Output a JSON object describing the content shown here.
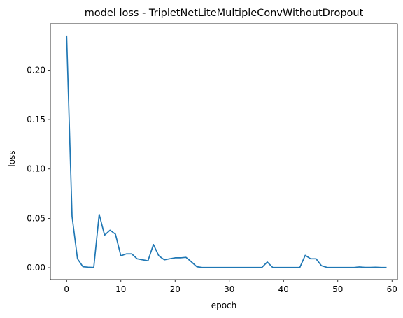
{
  "chart_data": {
    "type": "line",
    "title": "model loss - TripletNetLiteMultipleConvWithoutDropout",
    "xlabel": "epoch",
    "ylabel": "loss",
    "xlim": [
      -3,
      61
    ],
    "ylim": [
      -0.012,
      0.247
    ],
    "xticks": [
      0,
      10,
      20,
      30,
      40,
      50,
      60
    ],
    "yticks": [
      0.0,
      0.05,
      0.1,
      0.15,
      0.2
    ],
    "ytick_labels": [
      "0.00",
      "0.05",
      "0.10",
      "0.15",
      "0.20"
    ],
    "grid": false,
    "line_color": "#1f77b4",
    "x": [
      0,
      1,
      2,
      3,
      4,
      5,
      6,
      7,
      8,
      9,
      10,
      11,
      12,
      13,
      14,
      15,
      16,
      17,
      18,
      19,
      20,
      21,
      22,
      23,
      24,
      25,
      26,
      27,
      28,
      29,
      30,
      31,
      32,
      33,
      34,
      35,
      36,
      37,
      38,
      39,
      40,
      41,
      42,
      43,
      44,
      45,
      46,
      47,
      48,
      49,
      50,
      51,
      52,
      53,
      54,
      55,
      56,
      57,
      58,
      59
    ],
    "values": [
      0.235,
      0.052,
      0.009,
      0.001,
      0.0005,
      0.0002,
      0.054,
      0.033,
      0.038,
      0.034,
      0.012,
      0.014,
      0.014,
      0.009,
      0.008,
      0.007,
      0.0235,
      0.012,
      0.008,
      0.009,
      0.01,
      0.01,
      0.0105,
      0.006,
      0.001,
      0.0002,
      0.0002,
      0.0002,
      0.0002,
      0.0002,
      0.0002,
      0.0002,
      0.0002,
      0.0002,
      0.0002,
      0.0002,
      0.0002,
      0.0058,
      0.0003,
      0.0002,
      0.0002,
      0.0002,
      0.0002,
      0.0002,
      0.0125,
      0.009,
      0.009,
      0.002,
      0.0003,
      0.0002,
      0.0002,
      0.0002,
      0.0002,
      0.0002,
      0.0008,
      0.0003,
      0.0003,
      0.0005,
      0.0002,
      0.0002
    ]
  }
}
